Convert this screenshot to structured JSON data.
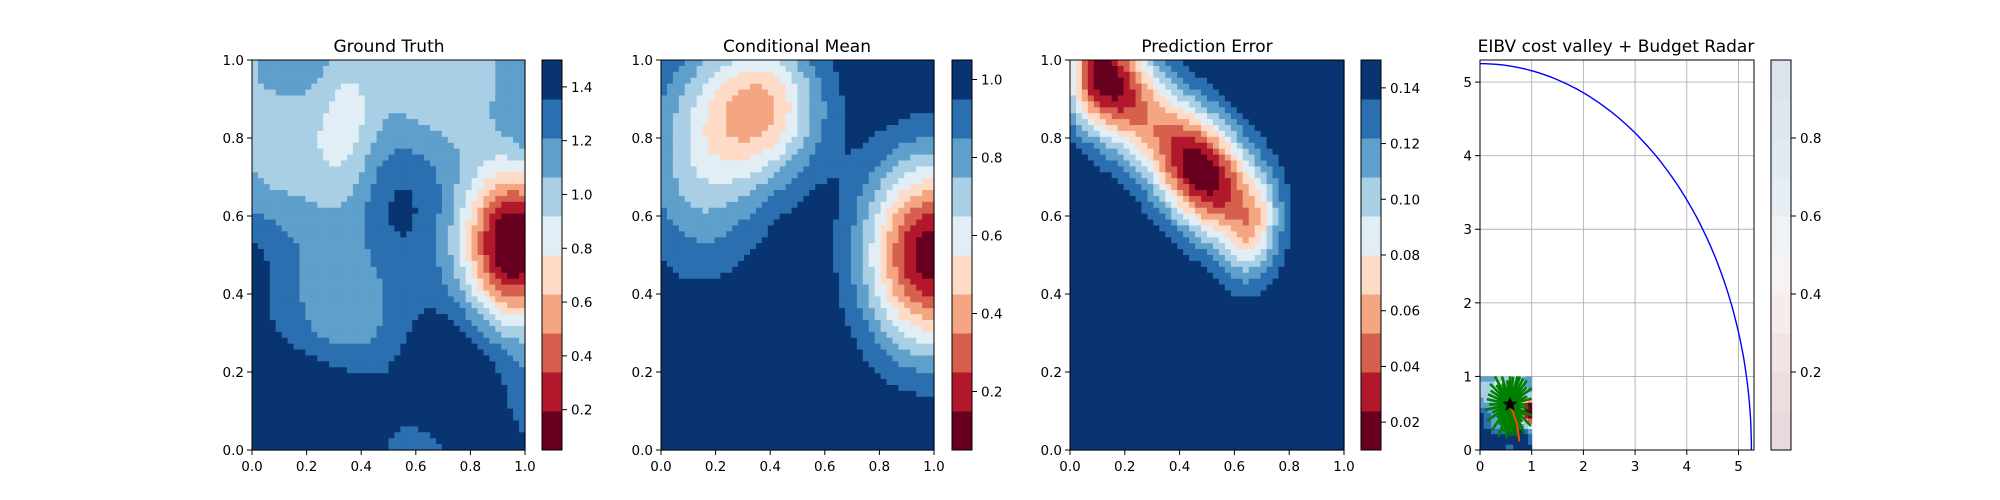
{
  "chart_data": [
    {
      "type": "heatmap",
      "title": "Ground Truth",
      "xlim": [
        0.0,
        1.0
      ],
      "ylim": [
        0.0,
        1.0
      ],
      "xticks": [
        "0.0",
        "0.2",
        "0.4",
        "0.6",
        "0.8",
        "1.0"
      ],
      "yticks": [
        "0.0",
        "0.2",
        "0.4",
        "0.6",
        "0.8",
        "1.0"
      ],
      "colormap": "RdBu",
      "colorbar": {
        "min": 0.05,
        "max": 1.5,
        "levels": 10,
        "ticks": [
          "0.2",
          "0.4",
          "0.6",
          "0.8",
          "1.0",
          "1.2",
          "1.4"
        ],
        "tick_values": [
          0.2,
          0.4,
          0.6,
          0.8,
          1.0,
          1.2,
          1.4
        ]
      }
    },
    {
      "type": "heatmap",
      "title": "Conditional Mean",
      "xlim": [
        0.0,
        1.0
      ],
      "ylim": [
        0.0,
        1.0
      ],
      "xticks": [
        "0.0",
        "0.2",
        "0.4",
        "0.6",
        "0.8",
        "1.0"
      ],
      "yticks": [
        "0.0",
        "0.2",
        "0.4",
        "0.6",
        "0.8",
        "1.0"
      ],
      "colormap": "RdBu",
      "colorbar": {
        "min": 0.05,
        "max": 1.05,
        "levels": 10,
        "ticks": [
          "0.2",
          "0.4",
          "0.6",
          "0.8",
          "1.0"
        ],
        "tick_values": [
          0.2,
          0.4,
          0.6,
          0.8,
          1.0
        ]
      }
    },
    {
      "type": "heatmap",
      "title": "Prediction Error",
      "xlim": [
        0.0,
        1.0
      ],
      "ylim": [
        0.0,
        1.0
      ],
      "xticks": [
        "0.0",
        "0.2",
        "0.4",
        "0.6",
        "0.8",
        "1.0"
      ],
      "yticks": [
        "0.0",
        "0.2",
        "0.4",
        "0.6",
        "0.8",
        "1.0"
      ],
      "colormap": "RdBu",
      "colorbar": {
        "min": 0.01,
        "max": 0.15,
        "levels": 10,
        "ticks": [
          "0.02",
          "0.04",
          "0.06",
          "0.08",
          "0.10",
          "0.12",
          "0.14"
        ],
        "tick_values": [
          0.02,
          0.04,
          0.06,
          0.08,
          0.1,
          0.12,
          0.14
        ]
      }
    },
    {
      "type": "scatter",
      "title": "EIBV cost valley + Budget Radar",
      "xlim": [
        0,
        5.3
      ],
      "ylim": [
        0,
        5.3
      ],
      "xticks": [
        "0",
        "1",
        "2",
        "3",
        "4",
        "5"
      ],
      "yticks": [
        "0",
        "1",
        "2",
        "3",
        "4",
        "5"
      ],
      "grid": true,
      "budget_radar_arc": {
        "center": [
          0,
          0
        ],
        "radius": 5.25,
        "color": "#0000ff"
      },
      "agent_marker": {
        "x": 0.58,
        "y": 0.62,
        "symbol": "star",
        "color": "#000000"
      },
      "candidate_paths": {
        "color": "#008000",
        "count": 40,
        "length": 0.5
      },
      "trajectory": {
        "color": "#ff4500",
        "points": [
          [
            0.58,
            0.62
          ],
          [
            0.72,
            0.35
          ],
          [
            0.76,
            0.12
          ]
        ]
      },
      "colorbar": {
        "min": 0.0,
        "max": 1.0,
        "levels": 10,
        "ticks": [
          "0.2",
          "0.4",
          "0.6",
          "0.8"
        ],
        "tick_values": [
          0.2,
          0.4,
          0.6,
          0.8
        ]
      }
    }
  ]
}
